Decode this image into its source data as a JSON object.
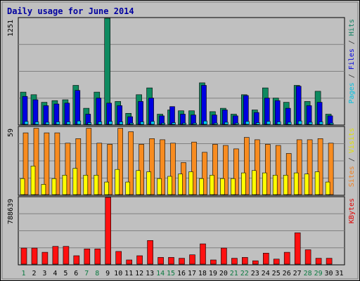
{
  "chart_data": {
    "type": "bar",
    "title": "Daily usage for June 2014",
    "categories": [
      "1",
      "2",
      "3",
      "4",
      "5",
      "6",
      "7",
      "8",
      "9",
      "10",
      "11",
      "12",
      "13",
      "14",
      "15",
      "16",
      "17",
      "18",
      "19",
      "20",
      "21",
      "22",
      "23",
      "24",
      "25",
      "26",
      "27",
      "28",
      "29",
      "30",
      "31"
    ],
    "weekend_days": [
      "1",
      "7",
      "8",
      "14",
      "15",
      "21",
      "22",
      "28",
      "29"
    ],
    "panels": [
      {
        "id": "hits-files-pages",
        "max_label": "1251",
        "ylim": [
          0,
          1251
        ],
        "legend": [
          {
            "text": "Pages",
            "color": "#00c0e0"
          },
          {
            "text": " / ",
            "color": "#333333"
          },
          {
            "text": "Files",
            "color": "#0000e0"
          },
          {
            "text": " / ",
            "color": "#333333"
          },
          {
            "text": "Hits",
            "color": "#0e8060"
          }
        ],
        "series": [
          {
            "name": "Hits",
            "color": "#0e8a60",
            "values": [
              380,
              350,
              260,
              280,
              290,
              460,
              190,
              380,
              1251,
              270,
              130,
              350,
              430,
              120,
              170,
              160,
              160,
              490,
              150,
              190,
              120,
              350,
              170,
              430,
              310,
              260,
              460,
              270,
              390,
              120,
              0
            ]
          },
          {
            "name": "Files",
            "color": "#0000e0",
            "values": [
              330,
              290,
              220,
              240,
              250,
              400,
              120,
              310,
              250,
              220,
              90,
              270,
              310,
              100,
              210,
              120,
              110,
              460,
              110,
              170,
              100,
              340,
              140,
              310,
              280,
              190,
              450,
              220,
              260,
              100,
              0
            ]
          },
          {
            "name": "Pages",
            "color": "#00c8f0",
            "values": [
              35,
              30,
              25,
              30,
              30,
              40,
              20,
              30,
              35,
              30,
              15,
              30,
              35,
              15,
              20,
              15,
              15,
              40,
              15,
              25,
              15,
              35,
              20,
              35,
              30,
              25,
              40,
              25,
              30,
              15,
              0
            ]
          }
        ]
      },
      {
        "id": "visits-sites",
        "max_label": "59",
        "ylim": [
          0,
          59
        ],
        "legend": [
          {
            "text": "Sites",
            "color": "#f08020"
          },
          {
            "text": " / ",
            "color": "#333333"
          },
          {
            "text": "Visits",
            "color": "#e0e000"
          }
        ],
        "series": [
          {
            "name": "Visits",
            "color": "#f88c20",
            "values": [
              54,
              58,
              54,
              54,
              45,
              49,
              58,
              45,
              44,
              58,
              55,
              44,
              49,
              48,
              45,
              28,
              46,
              37,
              44,
              43,
              40,
              50,
              48,
              44,
              43,
              36,
              48,
              48,
              49,
              45,
              0
            ]
          },
          {
            "name": "Sites",
            "color": "#ffff00",
            "values": [
              14,
              25,
              9,
              14,
              17,
              23,
              17,
              17,
              11,
              22,
              11,
              21,
              20,
              14,
              16,
              18,
              20,
              14,
              17,
              14,
              14,
              19,
              21,
              19,
              17,
              17,
              19,
              18,
              20,
              11,
              0
            ]
          }
        ]
      },
      {
        "id": "kbytes",
        "max_label": "788639",
        "ylim": [
          0,
          788639
        ],
        "legend": [
          {
            "text": "KBytes",
            "color": "#e00000"
          }
        ],
        "series": [
          {
            "name": "KBytes",
            "color": "#ff1010",
            "values": [
              190000,
              190000,
              140000,
              210000,
              210000,
              100000,
              180000,
              180000,
              788639,
              150000,
              50000,
              100000,
              280000,
              80000,
              80000,
              70000,
              110000,
              240000,
              50000,
              190000,
              70000,
              80000,
              40000,
              130000,
              60000,
              140000,
              370000,
              170000,
              70000,
              70000,
              0
            ]
          }
        ]
      }
    ]
  }
}
